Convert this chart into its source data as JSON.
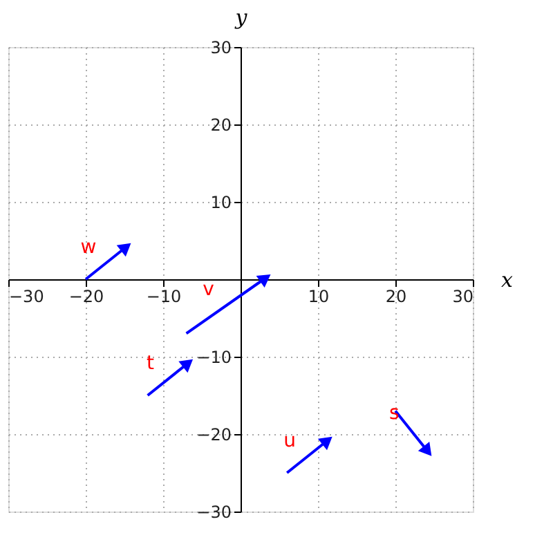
{
  "chart_data": {
    "type": "line",
    "xlabel": "x",
    "ylabel": "y",
    "xlim": [
      -30,
      30
    ],
    "ylim": [
      -30,
      30
    ],
    "xticks": [
      -30,
      -20,
      -10,
      10,
      20,
      30
    ],
    "yticks": [
      -30,
      -20,
      -10,
      10,
      20,
      30
    ],
    "grid": true,
    "line_style": "solid",
    "series": [
      {
        "name": "w",
        "color": "#0000ff",
        "x": [
          -20,
          -15
        ],
        "values": [
          0,
          4
        ]
      },
      {
        "name": "v",
        "color": "#0000ff",
        "x": [
          -7,
          3
        ],
        "values": [
          -7,
          0
        ]
      },
      {
        "name": "t",
        "color": "#0000ff",
        "x": [
          -12,
          -7
        ],
        "values": [
          -15,
          -11
        ]
      },
      {
        "name": "u",
        "color": "#0000ff",
        "x": [
          6,
          11
        ],
        "values": [
          -25,
          -21
        ]
      },
      {
        "name": "s",
        "color": "#0000ff",
        "x": [
          20,
          24
        ],
        "values": [
          -17,
          -22
        ]
      }
    ]
  }
}
